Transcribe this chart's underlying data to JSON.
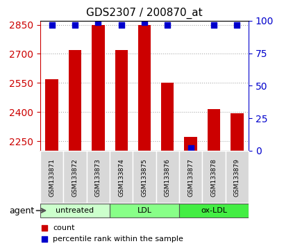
{
  "title": "GDS2307 / 200870_at",
  "samples": [
    "GSM133871",
    "GSM133872",
    "GSM133873",
    "GSM133874",
    "GSM133875",
    "GSM133876",
    "GSM133877",
    "GSM133878",
    "GSM133879"
  ],
  "count_values": [
    2568,
    2720,
    2848,
    2720,
    2848,
    2550,
    2270,
    2415,
    2395
  ],
  "percentile_values": [
    97,
    97,
    99,
    97,
    99,
    97,
    2,
    97,
    97
  ],
  "ylim": [
    2200,
    2870
  ],
  "yticks": [
    2250,
    2400,
    2550,
    2700,
    2850
  ],
  "right_yticks": [
    0,
    25,
    50,
    75,
    100
  ],
  "bar_color": "#cc0000",
  "dot_color": "#0000cc",
  "groups": [
    {
      "label": "untreated",
      "indices": [
        0,
        1,
        2
      ],
      "color": "#ccffcc"
    },
    {
      "label": "LDL",
      "indices": [
        3,
        4,
        5
      ],
      "color": "#88ff88"
    },
    {
      "label": "ox-LDL",
      "indices": [
        6,
        7,
        8
      ],
      "color": "#44ee44"
    }
  ],
  "xlabel_color": "#cc0000",
  "right_axis_color": "#0000cc",
  "background_color": "#ffffff",
  "plot_bg_color": "#ffffff",
  "grid_color": "#aaaaaa",
  "bar_bottom": 2200
}
